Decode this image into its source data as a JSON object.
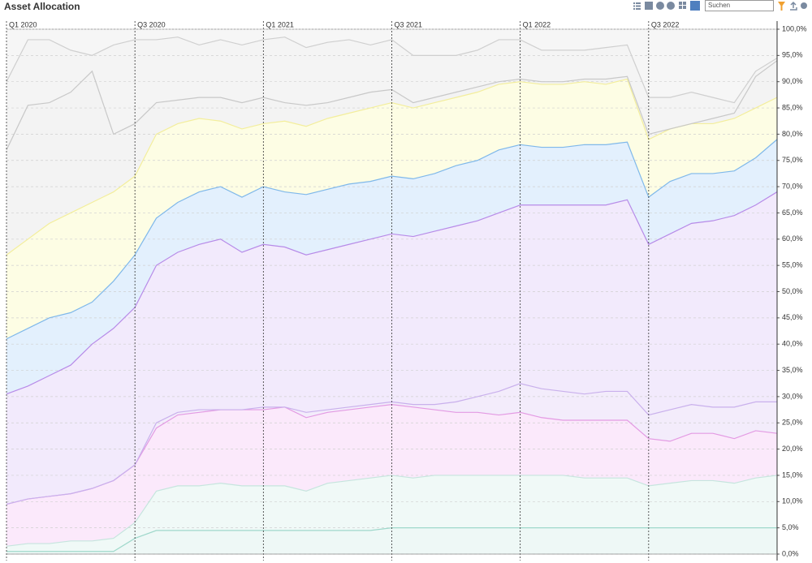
{
  "toolbar": {
    "search_placeholder": "Suchen"
  },
  "chart_data": {
    "type": "stacked-area",
    "title": "Asset Allocation",
    "categories": [
      "Q1 2020",
      null,
      null,
      null,
      null,
      null,
      "Q3 2020",
      null,
      null,
      null,
      null,
      null,
      "Q1 2021",
      null,
      null,
      null,
      null,
      null,
      "Q3 2021",
      null,
      null,
      null,
      null,
      null,
      "Q1 2022",
      null,
      null,
      null,
      null,
      null,
      "Q3 2022",
      null,
      null,
      null,
      null,
      null,
      null
    ],
    "series": [
      {
        "color": "#9fd8cb",
        "fill": "#eef8f6",
        "values": [
          0.5,
          0.5,
          0.5,
          0.5,
          0.5,
          0.5,
          3,
          4.5,
          4.5,
          4.5,
          4.5,
          4.5,
          4.5,
          4.5,
          4.5,
          4.5,
          4.5,
          4.5,
          5,
          5,
          5,
          5,
          5,
          5,
          5,
          5,
          5,
          5,
          5,
          5,
          5,
          5,
          5,
          5,
          5,
          5,
          5
        ]
      },
      {
        "color": "#c6e5de",
        "fill": "#f0f9f7",
        "values": [
          1,
          1.5,
          1.5,
          2,
          2,
          2.5,
          3,
          7.5,
          8.5,
          8.5,
          9,
          8.5,
          8.5,
          8.5,
          7.5,
          9,
          9.5,
          10,
          10,
          9.5,
          10,
          10,
          10,
          10,
          10,
          10,
          10,
          9.5,
          9.5,
          9.5,
          8,
          8.5,
          9,
          9,
          8.5,
          9.5,
          10
        ]
      },
      {
        "color": "#e39ae3",
        "fill": "#fbe9fb",
        "values": [
          8,
          8.5,
          9,
          9,
          10,
          11,
          11,
          12,
          13.5,
          14,
          14,
          14.5,
          14.5,
          15,
          14,
          13.5,
          13.5,
          13.5,
          13.5,
          13.5,
          12.5,
          12,
          12,
          11.5,
          12,
          11,
          10.5,
          11,
          11,
          11,
          9,
          8,
          9,
          9,
          8.5,
          9,
          8
        ]
      },
      {
        "color": "#c9b0ec",
        "fill": "#f3ecfb",
        "values": [
          0,
          0,
          0,
          0,
          0,
          0,
          0,
          1,
          0.5,
          0.5,
          0,
          0,
          0.5,
          0,
          1,
          0.5,
          0.5,
          0.5,
          0.5,
          0.5,
          1,
          2,
          3,
          4.5,
          5.5,
          5.5,
          5.5,
          5,
          5.5,
          5.5,
          4.5,
          6,
          5.5,
          5,
          6,
          5.5,
          6
        ]
      },
      {
        "color": "#b78be8",
        "fill": "#f2eafc",
        "values": [
          21,
          21.5,
          23,
          24.5,
          27.5,
          29,
          30,
          30,
          30.5,
          31.5,
          32.5,
          30,
          31,
          30.5,
          30,
          30.5,
          31,
          31.5,
          32,
          32,
          33,
          33.5,
          33.5,
          34,
          34,
          35,
          35.5,
          36,
          35.5,
          36.5,
          32.5,
          33.5,
          34.5,
          35.5,
          36.5,
          37.5,
          40
        ]
      },
      {
        "color": "#7fb8ea",
        "fill": "#e3f0fd",
        "values": [
          10.5,
          11,
          11,
          10,
          8,
          9,
          10,
          9,
          9.5,
          10,
          10,
          10.5,
          11,
          10.5,
          11.5,
          11.5,
          11.5,
          11,
          11,
          11,
          11,
          11.5,
          11.5,
          12,
          11.5,
          11,
          11,
          11.5,
          11.5,
          11,
          9,
          10,
          9.5,
          9,
          8.5,
          9,
          10
        ]
      },
      {
        "color": "#f3ee9c",
        "fill": "#fdfde4",
        "values": [
          16,
          17,
          18,
          19,
          19,
          17,
          15,
          16,
          15,
          14,
          12.5,
          13,
          12,
          13.5,
          13,
          13.5,
          13.5,
          14,
          14,
          13.5,
          13.5,
          13,
          13,
          12.5,
          12,
          12,
          12,
          12,
          11.5,
          12,
          11,
          10,
          9.5,
          9.5,
          10,
          9.5,
          8
        ]
      },
      {
        "color": "#c8c8c8",
        "fill": "#f3f3f3",
        "values": [
          20,
          25.5,
          23,
          23,
          25,
          11,
          10,
          6,
          4.5,
          4,
          4.5,
          5,
          5,
          3.5,
          4,
          3,
          3,
          3,
          2.5,
          1,
          1,
          1,
          1,
          0.5,
          0.5,
          0.5,
          0.5,
          0.5,
          1,
          0.5,
          1,
          0,
          0,
          1,
          1,
          6,
          7
        ]
      },
      {
        "color": "#cfcfcf",
        "fill": "#f4f4f4",
        "values": [
          13,
          12.5,
          12,
          8,
          3,
          17,
          16,
          12,
          12,
          10,
          11,
          11,
          11,
          12.5,
          11,
          11.5,
          11,
          9,
          9.5,
          9,
          8,
          7,
          7,
          8,
          7.5,
          6,
          6,
          5.5,
          6,
          6,
          7,
          6,
          6,
          4,
          2,
          1,
          0.5
        ]
      },
      {
        "color": "#d6d6d6",
        "fill": "#f6f6f6",
        "values": [
          10,
          2,
          2,
          4,
          5,
          3,
          2,
          2,
          1.5,
          3,
          2,
          3,
          2,
          1.5,
          3.5,
          2.5,
          2,
          3,
          2,
          5,
          5,
          5,
          4,
          2,
          2,
          4,
          4,
          4,
          3.5,
          3,
          13,
          13,
          12,
          13,
          14,
          8,
          5.5
        ]
      }
    ],
    "ylim": [
      0,
      100
    ],
    "yticks": [
      {
        "value": 0,
        "label": "0,0%"
      },
      {
        "value": 5,
        "label": "5,0%"
      },
      {
        "value": 10,
        "label": "10,0%"
      },
      {
        "value": 15,
        "label": "15,0%"
      },
      {
        "value": 20,
        "label": "20,0%"
      },
      {
        "value": 25,
        "label": "25,0%"
      },
      {
        "value": 30,
        "label": "30,0%"
      },
      {
        "value": 35,
        "label": "35,0%"
      },
      {
        "value": 40,
        "label": "40,0%"
      },
      {
        "value": 45,
        "label": "45,0%"
      },
      {
        "value": 50,
        "label": "50,0%"
      },
      {
        "value": 55,
        "label": "55,0%"
      },
      {
        "value": 60,
        "label": "60,0%"
      },
      {
        "value": 65,
        "label": "65,0%"
      },
      {
        "value": 70,
        "label": "70,0%"
      },
      {
        "value": 75,
        "label": "75,0%"
      },
      {
        "value": 80,
        "label": "80,0%"
      },
      {
        "value": 85,
        "label": "85,0%"
      },
      {
        "value": 90,
        "label": "90,0%"
      },
      {
        "value": 95,
        "label": "95,0%"
      },
      {
        "value": 100,
        "label": "100,0%"
      }
    ],
    "grid": true
  }
}
